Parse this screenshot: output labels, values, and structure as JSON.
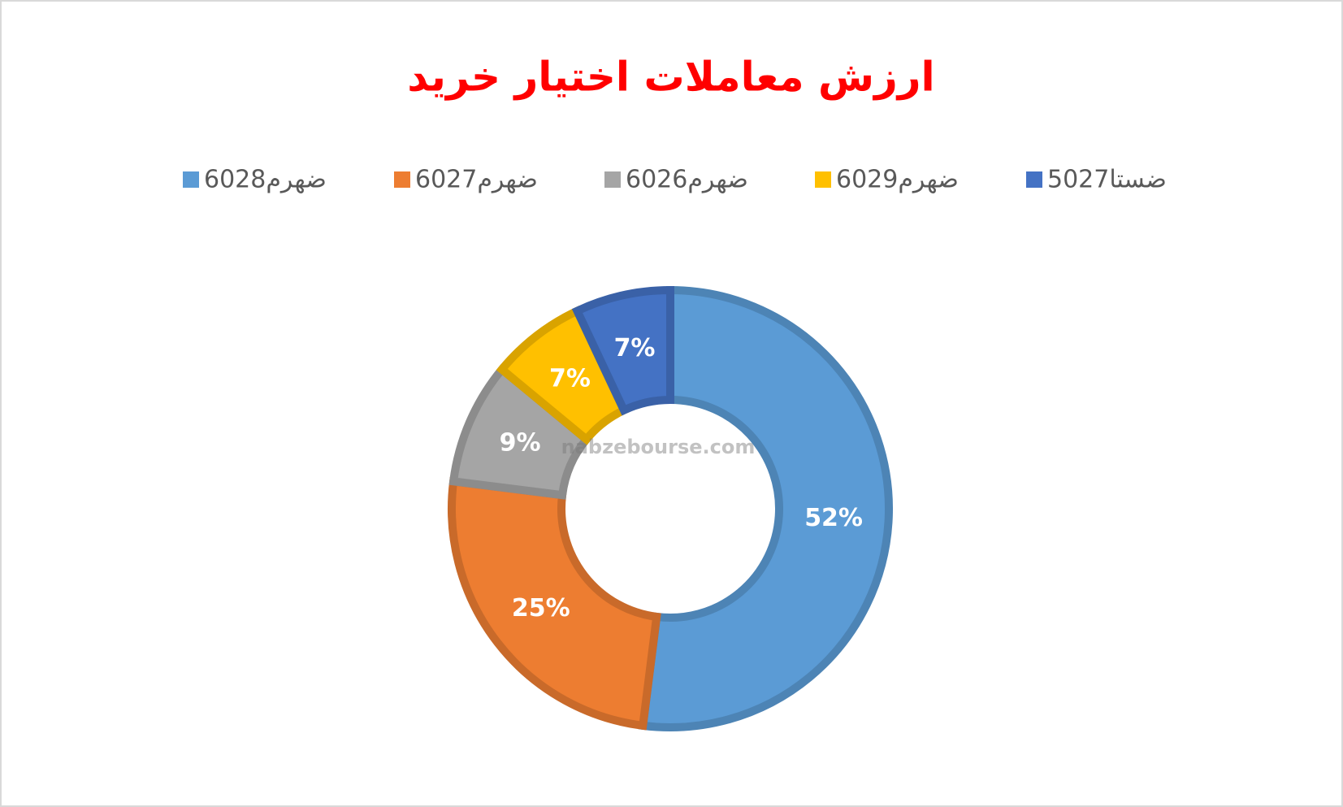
{
  "chart_data": {
    "type": "donut",
    "title": "ارزش معاملات اختیار خرید",
    "categories": [
      "ضهرم6028",
      "ضهرم6027",
      "ضهرم6026",
      "ضهرم6029",
      "ضستا5027"
    ],
    "values": [
      52,
      25,
      9,
      7,
      7
    ],
    "value_labels": [
      "52%",
      "25%",
      "9%",
      "7%",
      "7%"
    ],
    "colors": [
      "#5b9bd5",
      "#ed7d31",
      "#a5a5a5",
      "#ffc000",
      "#4472c4"
    ],
    "legend": "top",
    "watermark": "nabzebourse.com"
  }
}
